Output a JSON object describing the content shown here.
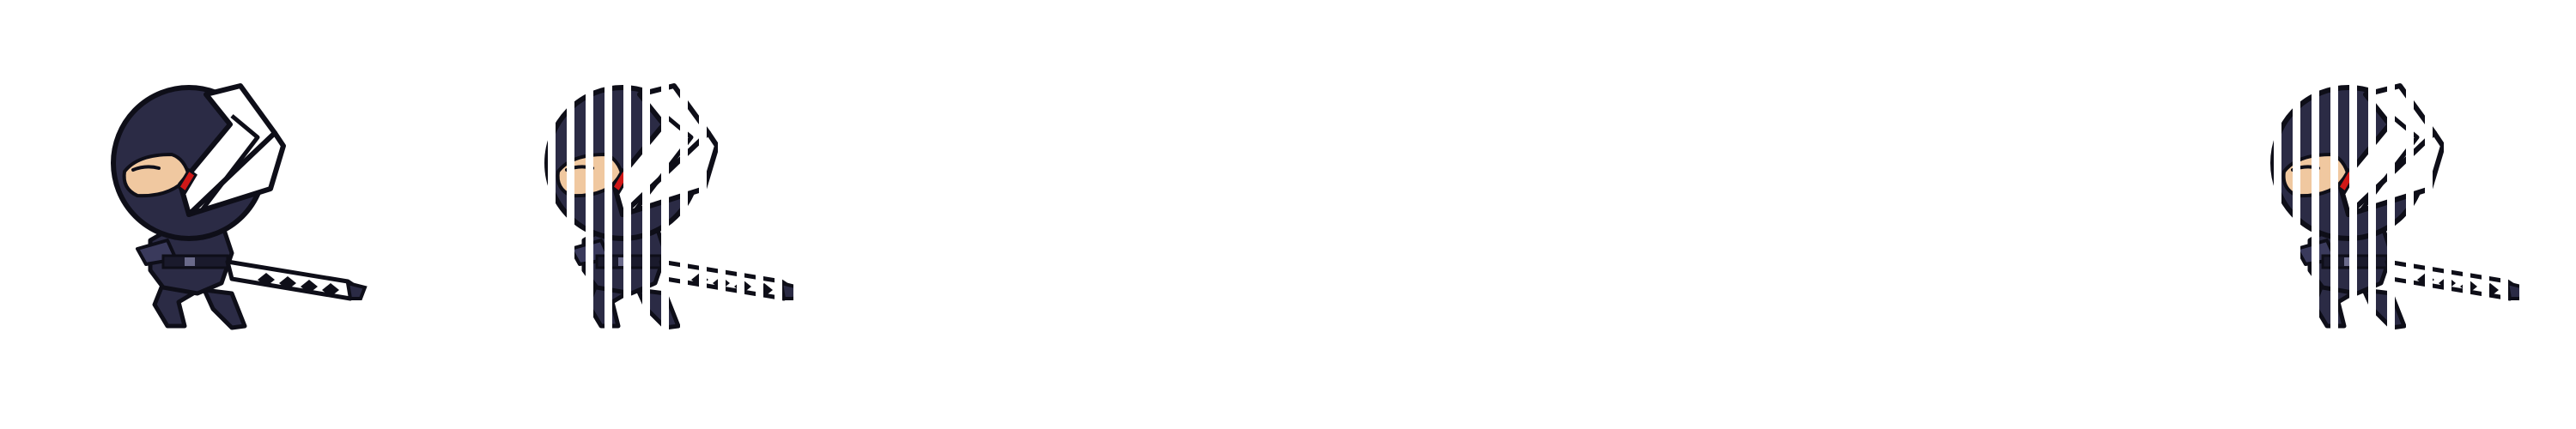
{
  "sprite_sheet": {
    "frames": [
      {
        "name": "ninja-frame-1",
        "effect": "solid"
      },
      {
        "name": "ninja-frame-2",
        "effect": "stripe-dissolve"
      },
      {
        "name": "ninja-frame-3",
        "effect": "stripe-dissolve"
      }
    ]
  },
  "colors": {
    "outfit": "#2b2b45",
    "outfit_highlight": "#4a4a6e",
    "outline": "#0e0e18",
    "skin": "#f0c8a0",
    "eye_accent": "#d01818",
    "blade": "#ffffff",
    "background": "#ffffff"
  }
}
